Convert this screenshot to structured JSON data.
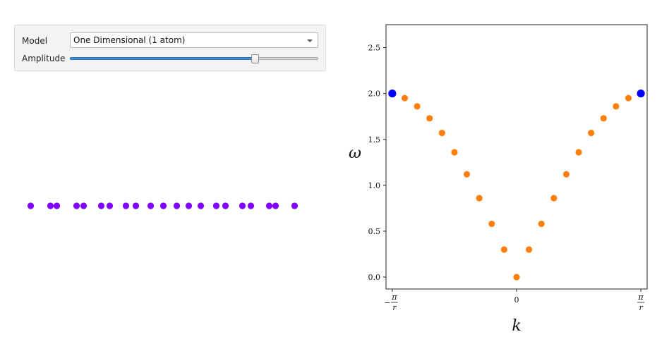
{
  "controls": {
    "model_label": "Model",
    "model_value": "One Dimensional (1 atom)",
    "amplitude_label": "Amplitude",
    "amplitude_fraction": 0.745
  },
  "atom_chain": {
    "color": "#8000ff",
    "positions": [
      43.5,
      71.5,
      80.5,
      108.5,
      118.5,
      143.5,
      155.5,
      178.5,
      192.5,
      213.5,
      231.5,
      250.5,
      267.5,
      284.5,
      306.5,
      319.5,
      343.5,
      355.5,
      381.5,
      390.5,
      417.5
    ]
  },
  "chart_data": {
    "type": "scatter",
    "xlabel": "k",
    "ylabel": "ω",
    "xlim": [
      -3.3,
      3.3
    ],
    "ylim": [
      -0.13,
      2.75
    ],
    "yticks": [
      0.0,
      0.5,
      1.0,
      1.5,
      2.0,
      2.5
    ],
    "ytick_labels": [
      "0.0",
      "0.5",
      "1.0",
      "1.5",
      "2.0",
      "2.5"
    ],
    "xticks": [
      {
        "x": -3.14159,
        "label": "−π/r",
        "num": "π",
        "den": "r",
        "neg": true
      },
      {
        "x": 0,
        "label": "0",
        "num": "",
        "den": "",
        "neg": false
      },
      {
        "x": 3.14159,
        "label": "π/r",
        "num": "π",
        "den": "r",
        "neg": false
      }
    ],
    "series": [
      {
        "color": "#ff7f0e",
        "x": [
          -2.827,
          -2.513,
          -2.199,
          -1.885,
          -1.571,
          -1.257,
          -0.942,
          -0.628,
          -0.314,
          0.0,
          0.314,
          0.628,
          0.942,
          1.257,
          1.571,
          1.885,
          2.199,
          2.513,
          2.827
        ],
        "y": [
          1.95,
          1.86,
          1.73,
          1.57,
          1.36,
          1.12,
          0.86,
          0.58,
          0.3,
          0.0,
          0.3,
          0.58,
          0.86,
          1.12,
          1.36,
          1.57,
          1.73,
          1.86,
          1.95
        ]
      },
      {
        "color": "#0000ff",
        "x": [
          -3.14159,
          3.14159
        ],
        "y": [
          2.0,
          2.0
        ]
      }
    ]
  }
}
